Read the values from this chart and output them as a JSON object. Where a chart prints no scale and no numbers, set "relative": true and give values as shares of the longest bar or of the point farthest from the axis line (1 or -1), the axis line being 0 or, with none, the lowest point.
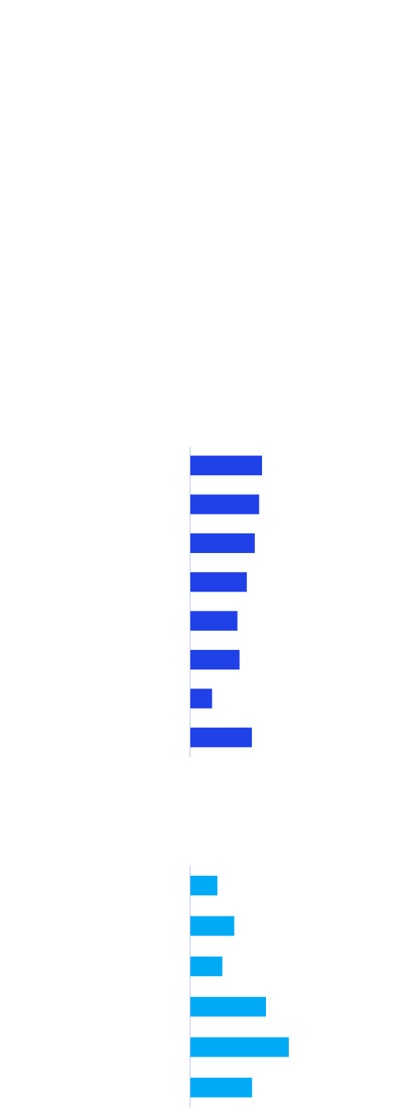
{
  "chart_data": [
    {
      "type": "bar",
      "orientation": "horizontal",
      "relative": true,
      "color": "#2040e8",
      "categories": [
        null,
        null,
        null,
        null,
        null,
        null,
        null,
        null
      ],
      "values": [
        1,
        0.96,
        0.9,
        0.79,
        0.66,
        0.69,
        0.31,
        0.86
      ]
    },
    {
      "type": "bar",
      "orientation": "horizontal",
      "relative": true,
      "color": "#00aaf5",
      "categories": [
        null,
        null,
        null,
        null,
        null,
        null
      ],
      "values": [
        0.28,
        0.45,
        0.33,
        0.77,
        1,
        0.63
      ]
    }
  ]
}
